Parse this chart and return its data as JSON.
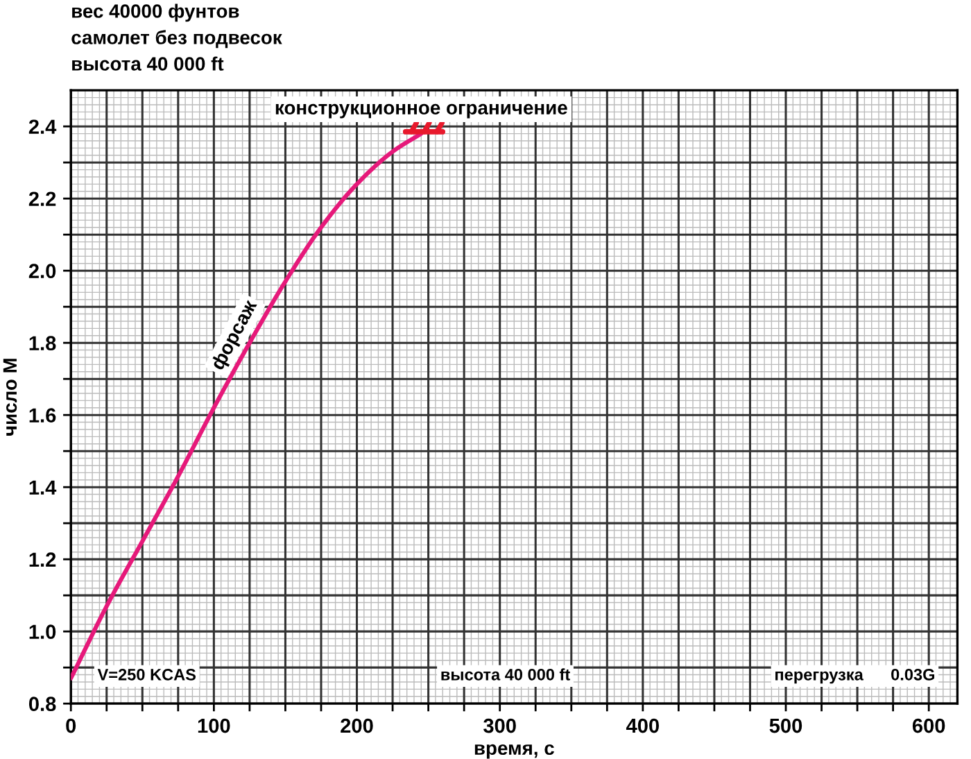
{
  "chart_data": {
    "type": "line",
    "title": "вес 40000 фунтов\nсамолет без подвесок\nвысота 40 000 ft",
    "xlabel": "время, с",
    "ylabel": "число М",
    "xlim": [
      0,
      620
    ],
    "ylim": [
      0.8,
      2.5
    ],
    "xticks": [
      0,
      {
        "value": 25,
        "label": null
      },
      {
        "value": 50,
        "label": null
      },
      {
        "value": 75,
        "label": null
      },
      100,
      {
        "value": 125,
        "label": null
      },
      {
        "value": 150,
        "label": null
      },
      {
        "value": 175,
        "label": null
      },
      200,
      {
        "value": 225,
        "label": null
      },
      {
        "value": 250,
        "label": null
      },
      {
        "value": 275,
        "label": null
      },
      300,
      {
        "value": 325,
        "label": null
      },
      {
        "value": 350,
        "label": null
      },
      {
        "value": 375,
        "label": null
      },
      400,
      {
        "value": 425,
        "label": null
      },
      {
        "value": 450,
        "label": null
      },
      {
        "value": 475,
        "label": null
      },
      500,
      {
        "value": 525,
        "label": null
      },
      {
        "value": 550,
        "label": null
      },
      {
        "value": 575,
        "label": null
      },
      600
    ],
    "yticks": [
      0.8,
      {
        "value": 0.9,
        "label": null
      },
      {
        "value": 1.0,
        "label": "1.0"
      },
      {
        "value": 1.1,
        "label": null
      },
      1.2,
      {
        "value": 1.3,
        "label": null
      },
      1.4,
      {
        "value": 1.5,
        "label": null
      },
      1.6,
      {
        "value": 1.7,
        "label": null
      },
      1.8,
      {
        "value": 1.9,
        "label": null
      },
      {
        "value": 2.0,
        "label": "2.0"
      },
      {
        "value": 2.1,
        "label": null
      },
      2.2,
      {
        "value": 2.3,
        "label": null
      },
      2.4
    ],
    "grid": true,
    "legend": false,
    "marker": "none",
    "line_style": "solid",
    "series": [
      {
        "color": "#e6197a",
        "x": [
          0,
          25,
          50,
          75,
          100,
          125,
          150,
          175,
          200,
          225,
          245
        ],
        "values": [
          0.87,
          1.07,
          1.25,
          1.43,
          1.62,
          1.8,
          1.97,
          2.12,
          2.24,
          2.33,
          2.38
        ]
      },
      {
        "color": "#e8192c",
        "x": [
          234,
          260
        ],
        "values": [
          2.385,
          2.385
        ]
      }
    ],
    "annotations": [
      {
        "text": "конструкционное ограничение",
        "x": 245,
        "y": 2.385
      },
      "форсаж",
      "V=250 KCAS",
      "высота 40 000 ft",
      "перегрузка      0.03G"
    ]
  }
}
